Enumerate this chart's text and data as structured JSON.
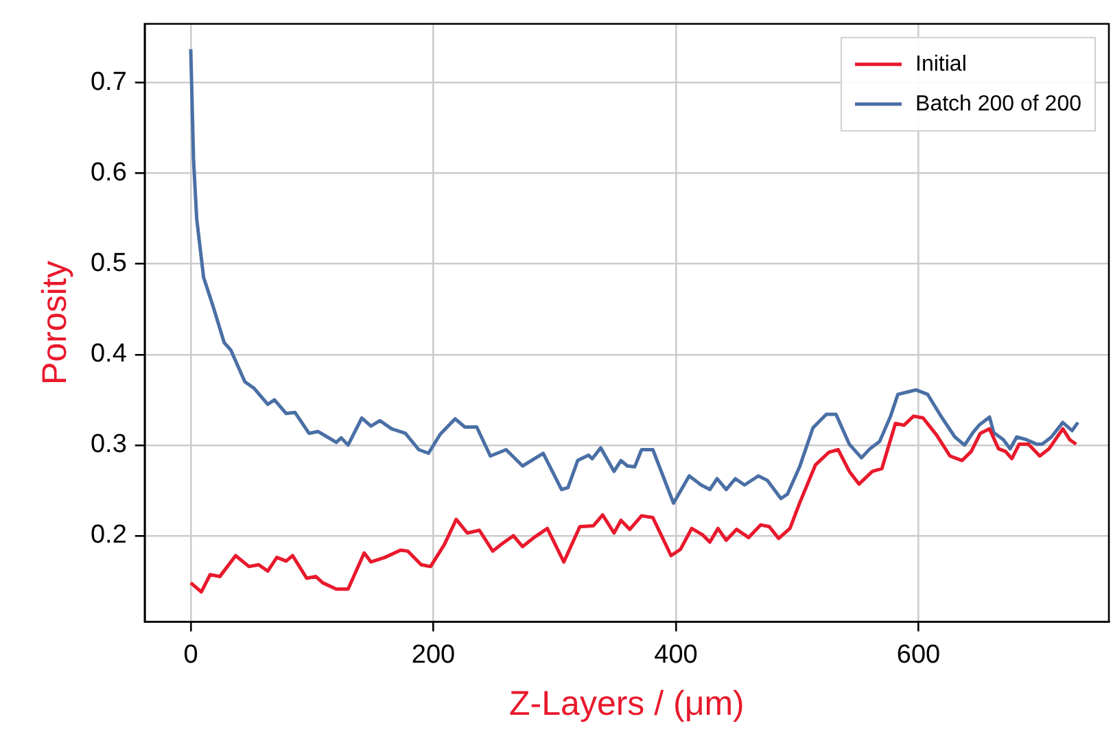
{
  "chart_data": {
    "type": "line",
    "xlabel": "Z-Layers / (μm)",
    "ylabel": "Porosity",
    "xlim": [
      -38,
      757
    ],
    "ylim": [
      0.105,
      0.765
    ],
    "xticks": [
      0,
      200,
      400,
      600
    ],
    "yticks": [
      0.2,
      0.3,
      0.4,
      0.5,
      0.6,
      0.7
    ],
    "grid": true,
    "legend": "top right",
    "marker": "none",
    "line_style": "solid",
    "series": [
      {
        "name": "Initial",
        "color": "#e8192c",
        "x": [
          0,
          8.7,
          16,
          24,
          37,
          48,
          56,
          63.5,
          71,
          78.6,
          84,
          95.6,
          103,
          108.9,
          120,
          129.7,
          143,
          148.6,
          160,
          173,
          179,
          190,
          197.7,
          209,
          218.9,
          228,
          238,
          249,
          256.6,
          266,
          273.6,
          283,
          294,
          307.6,
          320.8,
          332,
          339.6,
          349,
          354.7,
          362,
          371.7,
          381,
          396,
          403.8,
          413,
          422,
          428,
          434.7,
          441.5,
          450,
          460,
          470,
          477,
          484.7,
          494,
          502,
          515,
          526,
          533.8,
          543,
          551,
          562,
          569.8,
          581,
          588,
          596,
          603.8,
          615,
          626,
          636,
          643.5,
          651,
          658.6,
          666,
          671.8,
          677,
          683,
          690.7,
          700,
          707.7,
          719,
          724.7,
          730
        ],
        "values": [
          0.148,
          0.138,
          0.157,
          0.155,
          0.178,
          0.166,
          0.168,
          0.161,
          0.176,
          0.172,
          0.178,
          0.153,
          0.155,
          0.148,
          0.141,
          0.141,
          0.181,
          0.171,
          0.176,
          0.184,
          0.183,
          0.168,
          0.166,
          0.19,
          0.218,
          0.203,
          0.206,
          0.183,
          0.191,
          0.2,
          0.188,
          0.198,
          0.208,
          0.171,
          0.21,
          0.211,
          0.223,
          0.203,
          0.217,
          0.207,
          0.222,
          0.22,
          0.178,
          0.185,
          0.208,
          0.201,
          0.193,
          0.208,
          0.195,
          0.207,
          0.198,
          0.212,
          0.21,
          0.197,
          0.208,
          0.236,
          0.278,
          0.292,
          0.295,
          0.271,
          0.257,
          0.271,
          0.274,
          0.324,
          0.322,
          0.332,
          0.33,
          0.311,
          0.288,
          0.283,
          0.293,
          0.313,
          0.318,
          0.296,
          0.293,
          0.285,
          0.301,
          0.301,
          0.288,
          0.296,
          0.318,
          0.306,
          0.301
        ]
      },
      {
        "name": "Batch 200 of 200",
        "color": "#4a6fa5",
        "x": [
          0,
          2.3,
          4.9,
          10.6,
          18,
          27.6,
          33,
          44.6,
          52,
          63.5,
          69,
          78.6,
          86,
          97.5,
          105,
          112.6,
          120,
          124,
          129.7,
          141,
          148.6,
          156,
          165.6,
          177,
          188,
          196,
          205.7,
          218,
          226,
          235.8,
          247,
          260,
          273.6,
          290.6,
          305.7,
          311,
          319,
          328,
          331,
          338,
          349,
          354.7,
          360,
          366,
          371.7,
          381,
          398,
          411,
          420.8,
          428,
          434,
          441.5,
          449,
          456.6,
          468,
          475.5,
          486.6,
          492,
          502,
          513,
          524,
          532,
          543,
          553,
          560,
          568,
          577,
          583,
          592,
          598,
          607.6,
          619,
          630,
          638,
          645,
          650,
          658.6,
          662,
          670,
          675.6,
          681,
          689,
          697.5,
          702,
          709.6,
          719,
          726.6,
          731.5
        ],
        "values": [
          0.737,
          0.615,
          0.55,
          0.485,
          0.455,
          0.413,
          0.405,
          0.37,
          0.363,
          0.345,
          0.35,
          0.335,
          0.336,
          0.313,
          0.315,
          0.309,
          0.303,
          0.308,
          0.3,
          0.33,
          0.321,
          0.327,
          0.318,
          0.313,
          0.295,
          0.291,
          0.312,
          0.329,
          0.32,
          0.32,
          0.288,
          0.295,
          0.277,
          0.291,
          0.251,
          0.253,
          0.283,
          0.289,
          0.285,
          0.297,
          0.271,
          0.283,
          0.277,
          0.276,
          0.295,
          0.295,
          0.236,
          0.266,
          0.256,
          0.251,
          0.263,
          0.251,
          0.263,
          0.256,
          0.266,
          0.261,
          0.241,
          0.246,
          0.276,
          0.319,
          0.334,
          0.334,
          0.301,
          0.286,
          0.296,
          0.304,
          0.332,
          0.356,
          0.359,
          0.361,
          0.356,
          0.331,
          0.309,
          0.3,
          0.314,
          0.322,
          0.331,
          0.314,
          0.306,
          0.296,
          0.309,
          0.306,
          0.301,
          0.301,
          0.309,
          0.325,
          0.316,
          0.325
        ]
      }
    ]
  }
}
